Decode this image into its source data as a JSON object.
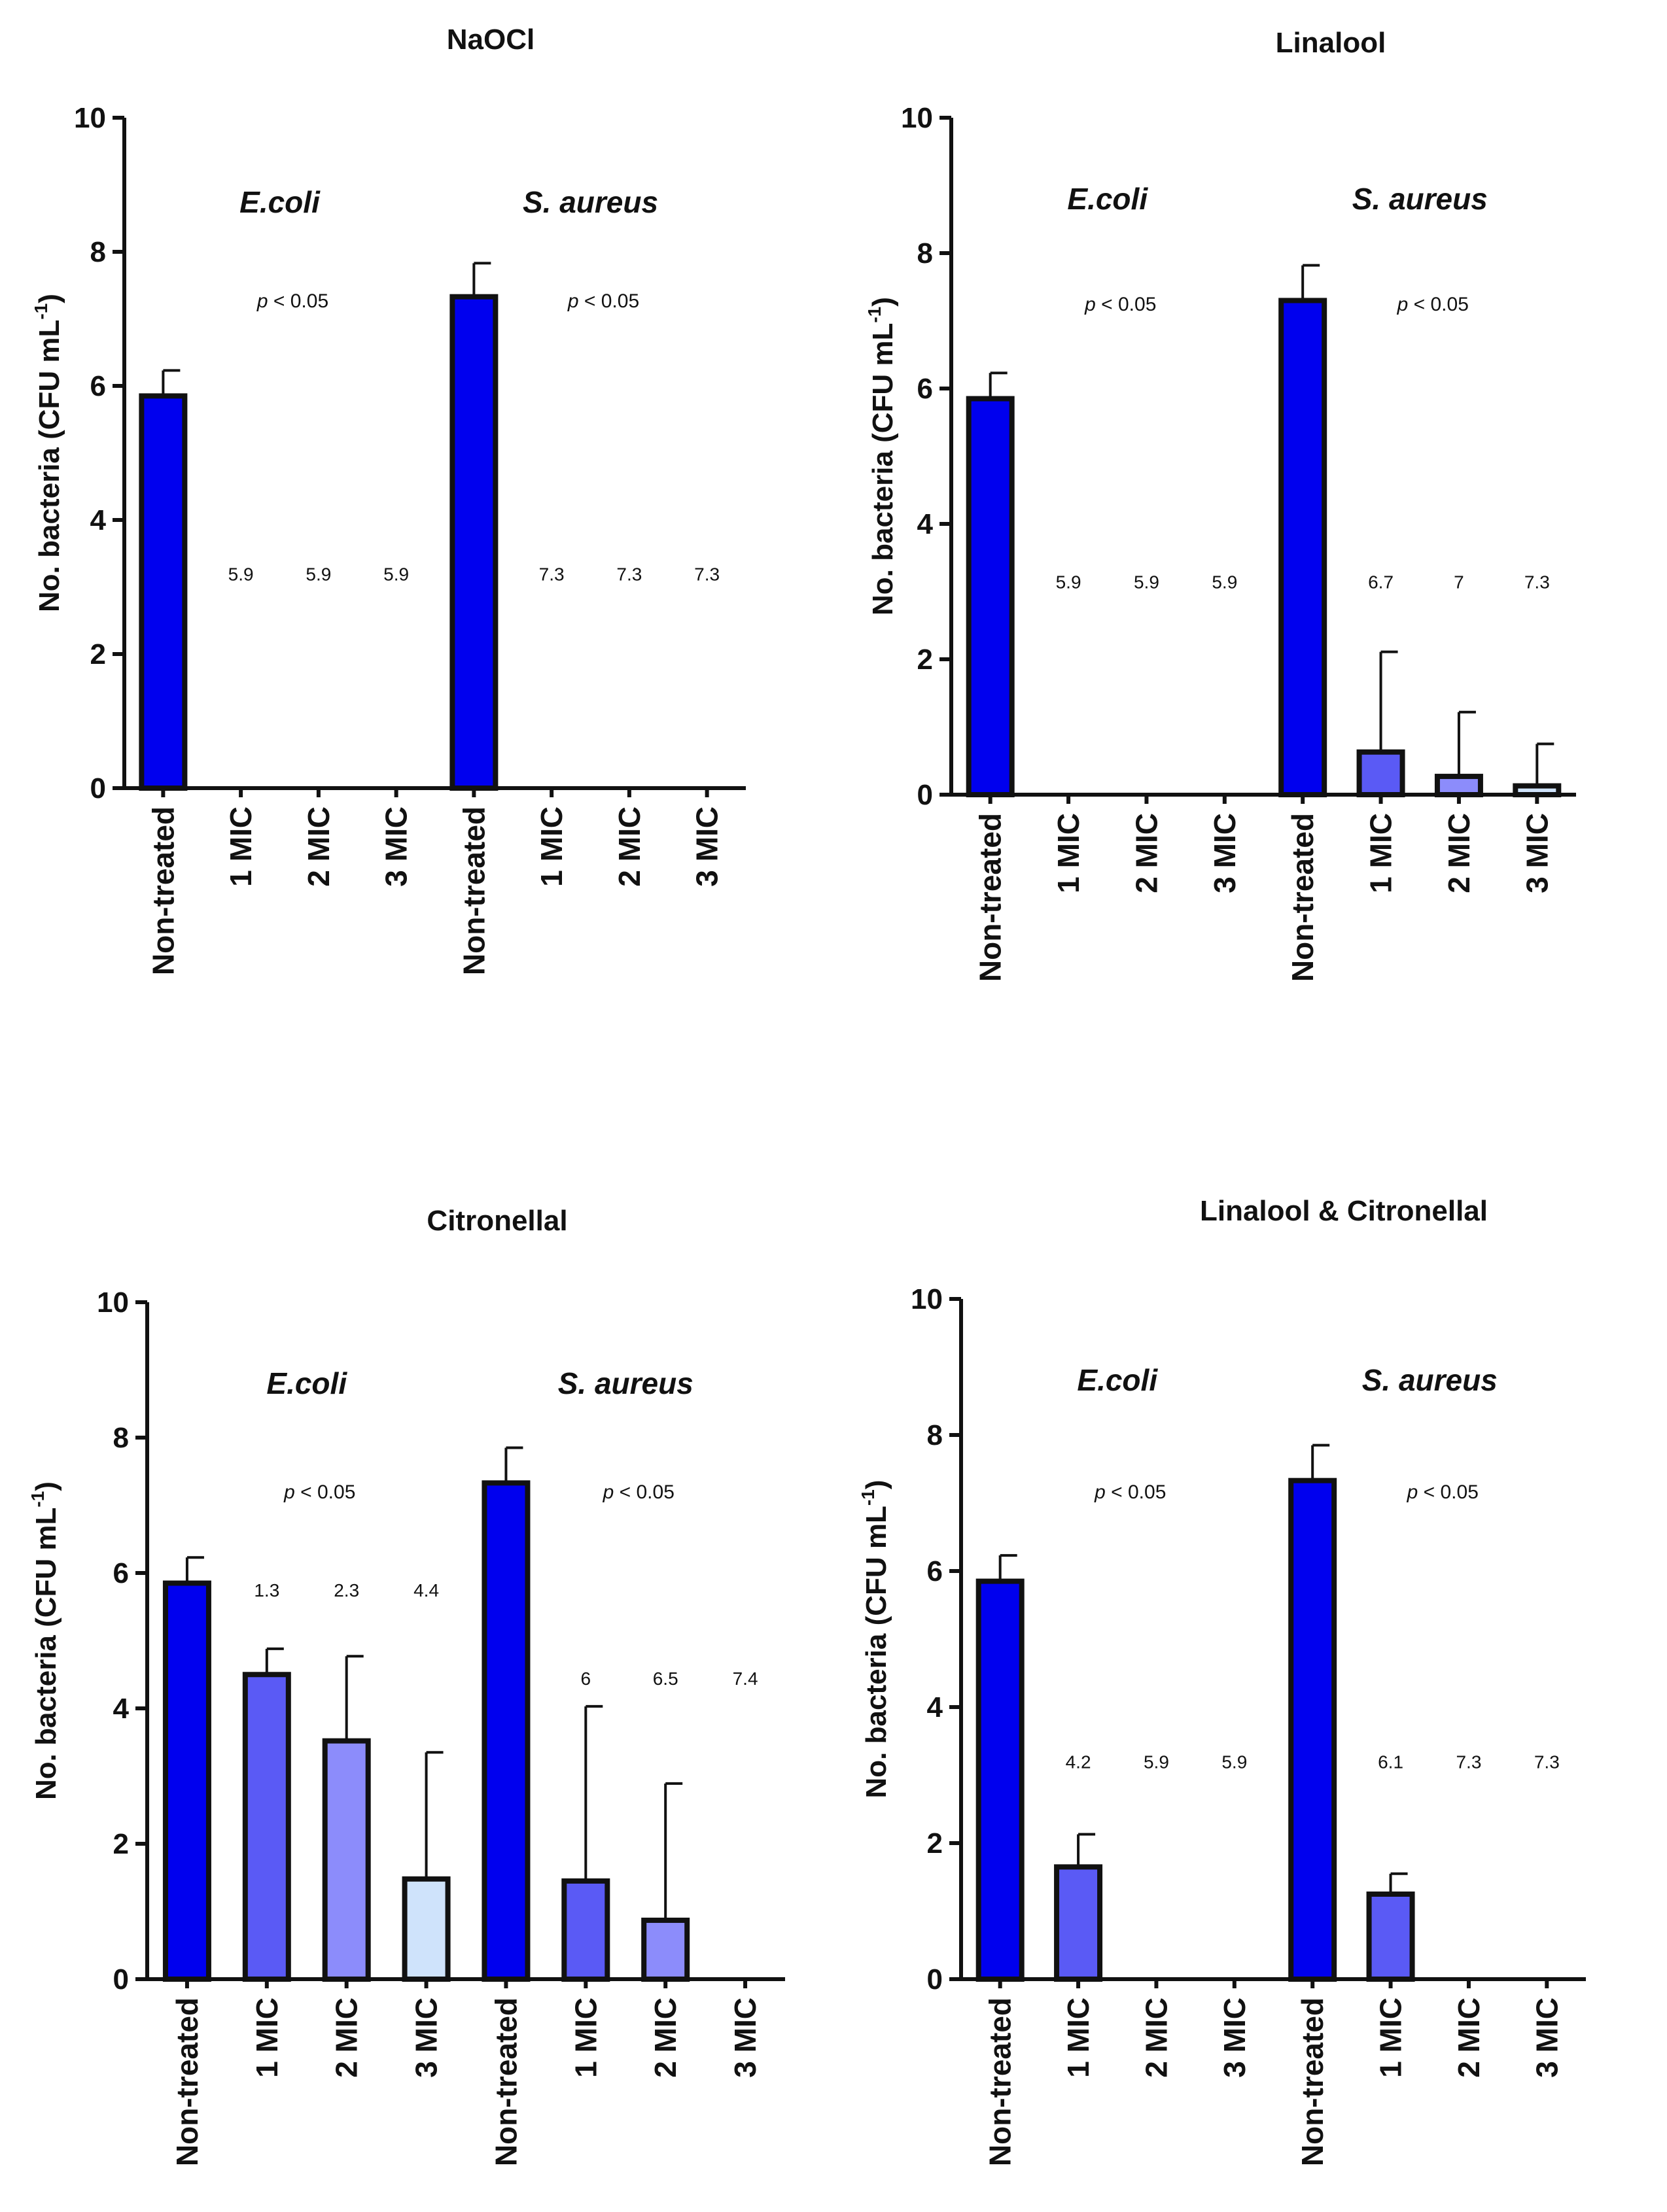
{
  "chart_data": [
    {
      "type": "bar",
      "title": "NaOCl",
      "ylabel": "No. bacteria (CFU mL-1)",
      "ylim": [
        0,
        10
      ],
      "yticks": [
        0,
        2,
        4,
        6,
        8,
        10
      ],
      "categories": [
        "Non-treated",
        "1 MIC",
        "2 MIC",
        "3 MIC",
        "Non-treated",
        "1 MIC",
        "2 MIC",
        "3 MIC"
      ],
      "groups": [
        {
          "name": "E.coli",
          "p_value": "< 0.05"
        },
        {
          "name": "S. aureus",
          "p_value": "< 0.05"
        }
      ],
      "values": [
        5.85,
        0,
        0,
        0,
        7.33,
        0,
        0,
        0
      ],
      "errors": [
        0.38,
        0,
        0,
        0,
        0.5,
        0,
        0,
        0
      ],
      "log_reductions": [
        "",
        "5.9",
        "5.9",
        "5.9",
        "",
        "7.3",
        "7.3",
        "7.3"
      ],
      "log_label_level": [
        null,
        3.1,
        3.1,
        3.1,
        null,
        3.1,
        3.1,
        3.1
      ],
      "colors": [
        "#0000ee",
        "#5a5af5",
        "#8c8cfb",
        "#cfe3fb",
        "#0000ee",
        "#5a5af5",
        "#8c8cfb",
        "#cfe3fb"
      ]
    },
    {
      "type": "bar",
      "title": "Linalool",
      "ylabel": "No. bacteria (CFU mL-1)",
      "ylim": [
        0,
        10
      ],
      "yticks": [
        0,
        2,
        4,
        6,
        8,
        10
      ],
      "categories": [
        "Non-treated",
        "1 MIC",
        "2 MIC",
        "3 MIC",
        "Non-treated",
        "1 MIC",
        "2 MIC",
        "3 MIC"
      ],
      "groups": [
        {
          "name": "E.coli",
          "p_value": "< 0.05"
        },
        {
          "name": "S. aureus",
          "p_value": "< 0.05"
        }
      ],
      "values": [
        5.85,
        0,
        0,
        0,
        7.3,
        0.63,
        0.27,
        0.13
      ],
      "errors": [
        0.38,
        0,
        0,
        0,
        0.52,
        1.48,
        0.95,
        0.62
      ],
      "log_reductions": [
        "",
        "5.9",
        "5.9",
        "5.9",
        "",
        "6.7",
        "7",
        "7.3"
      ],
      "log_label_level": [
        null,
        3.05,
        3.05,
        3.05,
        null,
        3.05,
        3.05,
        3.05
      ],
      "colors": [
        "#0000ee",
        "#5a5af5",
        "#8c8cfb",
        "#cfe3fb",
        "#0000ee",
        "#5a5af5",
        "#8c8cfb",
        "#cfe3fb"
      ]
    },
    {
      "type": "bar",
      "title": "Citronellal",
      "ylabel": "No. bacteria (CFU mL-1)",
      "ylim": [
        0,
        10
      ],
      "yticks": [
        0,
        2,
        4,
        6,
        8,
        10
      ],
      "categories": [
        "Non-treated",
        "1 MIC",
        "2 MIC",
        "3 MIC",
        "Non-treated",
        "1 MIC",
        "2 MIC",
        "3 MIC"
      ],
      "groups": [
        {
          "name": "E.coli",
          "p_value": "< 0.05"
        },
        {
          "name": "S. aureus",
          "p_value": "< 0.05"
        }
      ],
      "values": [
        5.85,
        4.5,
        3.52,
        1.48,
        7.33,
        1.45,
        0.87,
        0
      ],
      "errors": [
        0.38,
        0.38,
        1.25,
        1.87,
        0.52,
        2.58,
        2.02,
        0
      ],
      "log_reductions": [
        "",
        "1.3",
        "2.3",
        "4.4",
        "",
        "6",
        "6.5",
        "7.4"
      ],
      "log_label_level": [
        null,
        5.65,
        5.65,
        5.65,
        null,
        4.35,
        4.35,
        4.35
      ],
      "colors": [
        "#0000ee",
        "#5a5af5",
        "#8c8cfb",
        "#cfe3fb",
        "#0000ee",
        "#5a5af5",
        "#8c8cfb",
        "#cfe3fb"
      ]
    },
    {
      "type": "bar",
      "title": "Linalool & Citronellal",
      "ylabel": "No. bacteria (CFU mL-1)",
      "ylim": [
        0,
        10
      ],
      "yticks": [
        0,
        2,
        4,
        6,
        8,
        10
      ],
      "categories": [
        "Non-treated",
        "1 MIC",
        "2 MIC",
        "3 MIC",
        "Non-treated",
        "1 MIC",
        "2 MIC",
        "3 MIC"
      ],
      "groups": [
        {
          "name": "E.coli",
          "p_value": "< 0.05"
        },
        {
          "name": "S. aureus",
          "p_value": "< 0.05"
        }
      ],
      "values": [
        5.85,
        1.65,
        0,
        0,
        7.33,
        1.25,
        0,
        0
      ],
      "errors": [
        0.38,
        0.48,
        0,
        0,
        0.52,
        0.3,
        0,
        0
      ],
      "log_reductions": [
        "",
        "4.2",
        "5.9",
        "5.9",
        "",
        "6.1",
        "7.3",
        "7.3"
      ],
      "log_label_level": [
        null,
        3.1,
        3.1,
        3.1,
        null,
        3.1,
        3.1,
        3.1
      ],
      "colors": [
        "#0000ee",
        "#5a5af5",
        "#8c8cfb",
        "#cfe3fb",
        "#0000ee",
        "#5a5af5",
        "#8c8cfb",
        "#cfe3fb"
      ]
    }
  ]
}
